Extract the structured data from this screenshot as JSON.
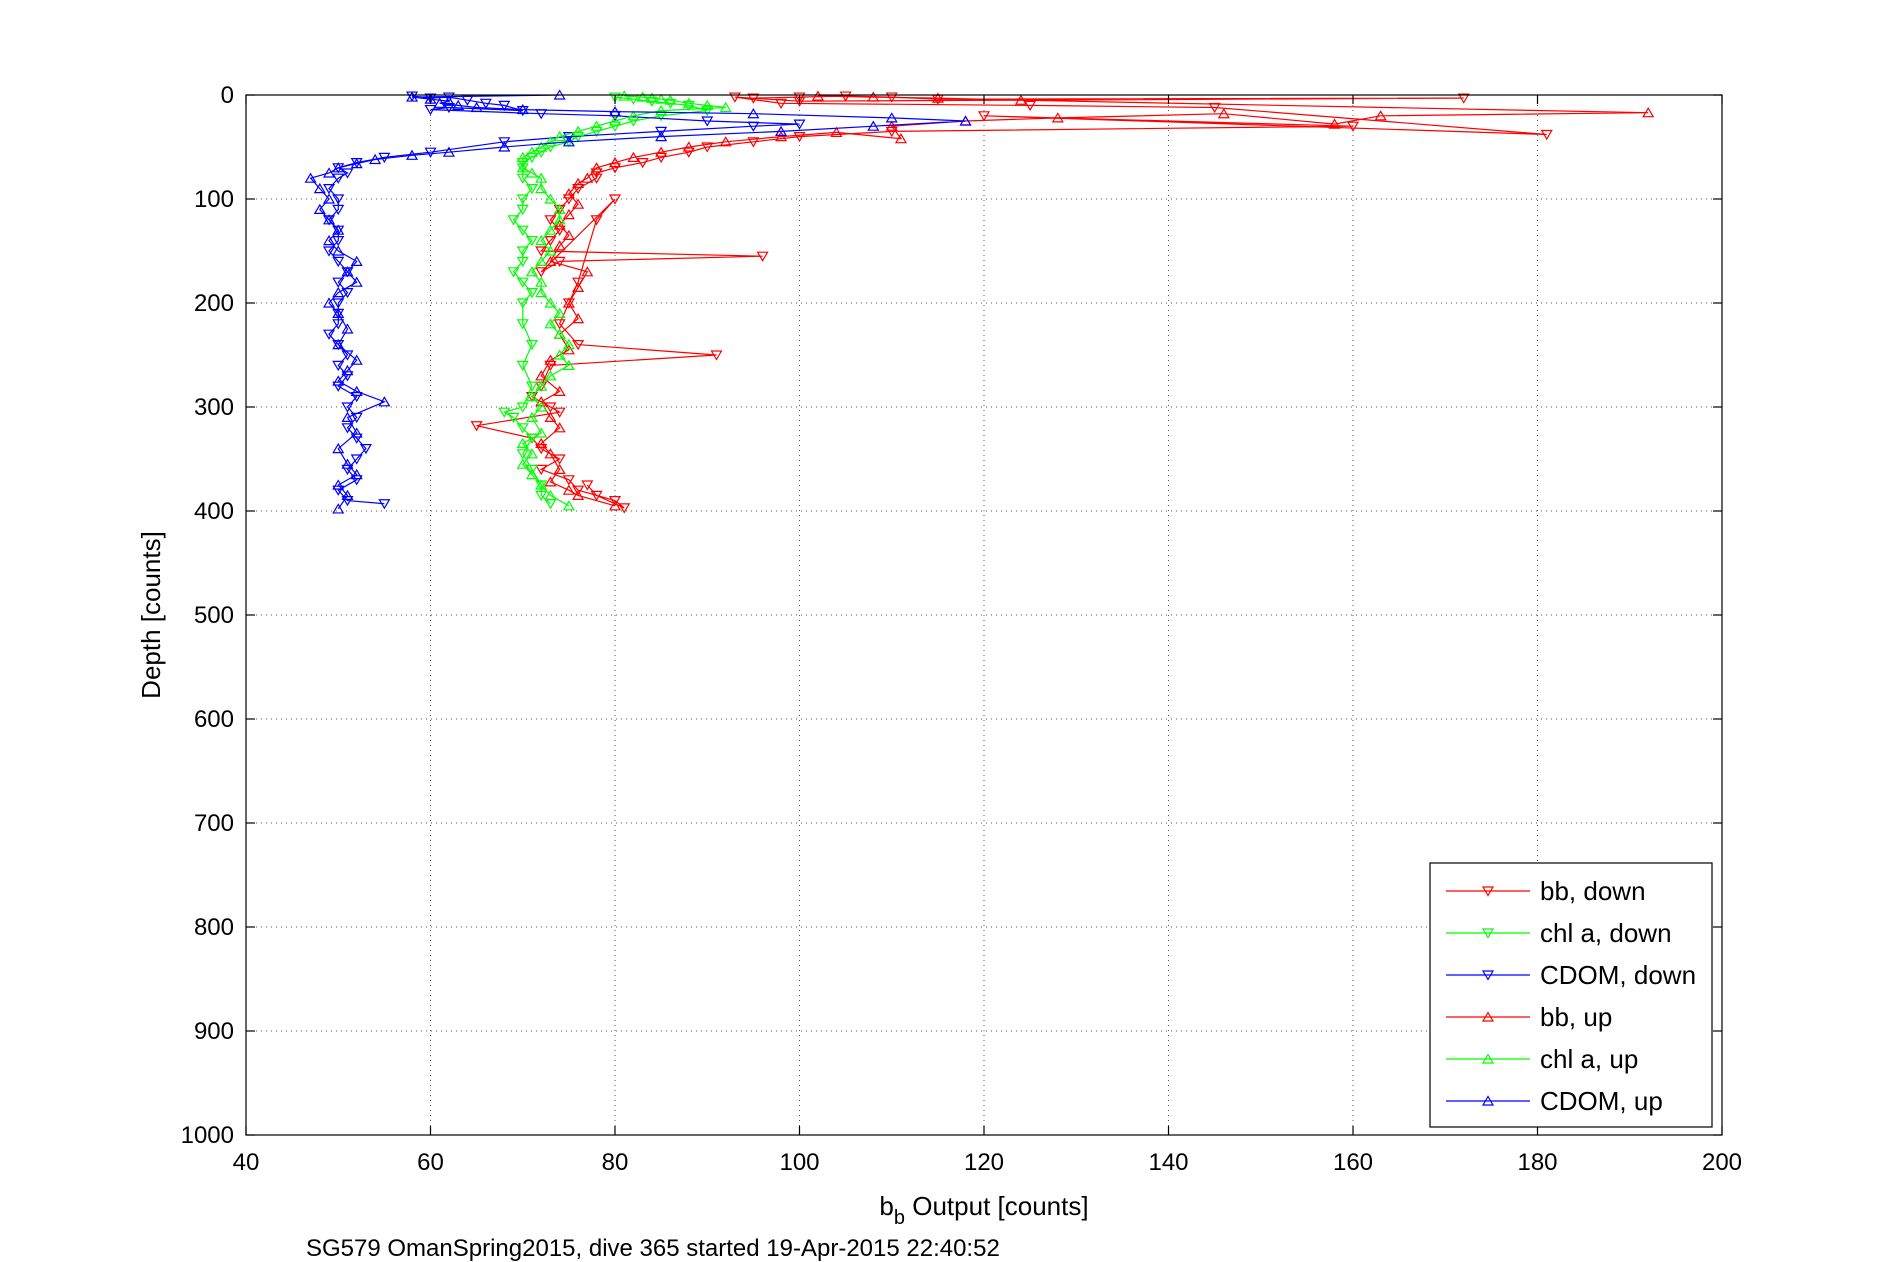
{
  "chart_data": {
    "type": "scatter",
    "xlabel_main": "b",
    "xlabel_sub": "b",
    "xlabel_rest": " Output [counts]",
    "ylabel": "Depth [counts]",
    "caption": "SG579 OmanSpring2015, dive 365 started 19-Apr-2015 22:40:52",
    "xlim": [
      40,
      200
    ],
    "ylim": [
      0,
      1000
    ],
    "y_reversed": true,
    "grid": true,
    "legend_placement": "bottom-right",
    "x_ticks": [
      40,
      60,
      80,
      100,
      120,
      140,
      160,
      180,
      200
    ],
    "y_ticks": [
      0,
      100,
      200,
      300,
      400,
      500,
      600,
      700,
      800,
      900,
      1000
    ],
    "x_tick_labels": [
      "40",
      "60",
      "80",
      "100",
      "120",
      "140",
      "160",
      "180",
      "200"
    ],
    "y_tick_labels": [
      "0",
      "100",
      "200",
      "300",
      "400",
      "500",
      "600",
      "700",
      "800",
      "900",
      "1000"
    ],
    "series": [
      {
        "name": "bb, down",
        "color": "#ff0000",
        "marker": "triangle-down",
        "points": [
          [
            95,
            3
          ],
          [
            100,
            2
          ],
          [
            105,
            1
          ],
          [
            110,
            2
          ],
          [
            115,
            4
          ],
          [
            172,
            3
          ],
          [
            100,
            6
          ],
          [
            93,
            2
          ],
          [
            98,
            8
          ],
          [
            125,
            10
          ],
          [
            145,
            12
          ],
          [
            181,
            38
          ],
          [
            120,
            20
          ],
          [
            160,
            30
          ],
          [
            110,
            35
          ],
          [
            100,
            40
          ],
          [
            95,
            45
          ],
          [
            90,
            50
          ],
          [
            88,
            55
          ],
          [
            85,
            60
          ],
          [
            83,
            65
          ],
          [
            80,
            70
          ],
          [
            78,
            75
          ],
          [
            78,
            80
          ],
          [
            76,
            90
          ],
          [
            75,
            100
          ],
          [
            74,
            110
          ],
          [
            73,
            120
          ],
          [
            74,
            130
          ],
          [
            73,
            140
          ],
          [
            72,
            150
          ],
          [
            96,
            155
          ],
          [
            74,
            160
          ],
          [
            72,
            170
          ],
          [
            80,
            100
          ],
          [
            78,
            120
          ],
          [
            76,
            180
          ],
          [
            75,
            200
          ],
          [
            74,
            220
          ],
          [
            76,
            240
          ],
          [
            91,
            250
          ],
          [
            73,
            260
          ],
          [
            72,
            280
          ],
          [
            71,
            290
          ],
          [
            73,
            300
          ],
          [
            74,
            305
          ],
          [
            65,
            318
          ],
          [
            71,
            330
          ],
          [
            72,
            340
          ],
          [
            74,
            350
          ],
          [
            72,
            360
          ],
          [
            75,
            370
          ],
          [
            76,
            380
          ],
          [
            80,
            390
          ],
          [
            81,
            397
          ],
          [
            78,
            385
          ],
          [
            77,
            375
          ]
        ]
      },
      {
        "name": "chl a, down",
        "color": "#00ff00",
        "marker": "triangle-down",
        "points": [
          [
            80,
            2
          ],
          [
            82,
            4
          ],
          [
            84,
            6
          ],
          [
            86,
            8
          ],
          [
            88,
            10
          ],
          [
            90,
            15
          ],
          [
            85,
            20
          ],
          [
            82,
            25
          ],
          [
            80,
            30
          ],
          [
            78,
            35
          ],
          [
            76,
            40
          ],
          [
            75,
            45
          ],
          [
            73,
            50
          ],
          [
            72,
            55
          ],
          [
            71,
            60
          ],
          [
            70,
            65
          ],
          [
            70,
            70
          ],
          [
            70,
            80
          ],
          [
            71,
            90
          ],
          [
            70,
            100
          ],
          [
            70,
            110
          ],
          [
            69,
            120
          ],
          [
            70,
            130
          ],
          [
            71,
            140
          ],
          [
            70,
            150
          ],
          [
            70,
            160
          ],
          [
            69,
            170
          ],
          [
            70,
            180
          ],
          [
            71,
            190
          ],
          [
            70,
            200
          ],
          [
            70,
            220
          ],
          [
            71,
            240
          ],
          [
            70,
            260
          ],
          [
            71,
            280
          ],
          [
            70,
            300
          ],
          [
            68,
            305
          ],
          [
            69,
            310
          ],
          [
            70,
            320
          ],
          [
            71,
            330
          ],
          [
            70,
            345
          ],
          [
            71,
            360
          ],
          [
            72,
            375
          ],
          [
            72,
            385
          ],
          [
            73,
            393
          ]
        ]
      },
      {
        "name": "CDOM, down",
        "color": "#0000ff",
        "marker": "triangle-down",
        "points": [
          [
            58,
            1
          ],
          [
            60,
            3
          ],
          [
            62,
            2
          ],
          [
            64,
            5
          ],
          [
            66,
            8
          ],
          [
            68,
            10
          ],
          [
            70,
            15
          ],
          [
            62,
            12
          ],
          [
            60,
            14
          ],
          [
            72,
            18
          ],
          [
            80,
            20
          ],
          [
            90,
            25
          ],
          [
            100,
            28
          ],
          [
            95,
            30
          ],
          [
            85,
            35
          ],
          [
            75,
            40
          ],
          [
            68,
            45
          ],
          [
            60,
            55
          ],
          [
            55,
            60
          ],
          [
            52,
            65
          ],
          [
            50,
            70
          ],
          [
            51,
            75
          ],
          [
            50,
            80
          ],
          [
            49,
            90
          ],
          [
            50,
            100
          ],
          [
            50,
            110
          ],
          [
            49,
            120
          ],
          [
            50,
            130
          ],
          [
            50,
            140
          ],
          [
            49,
            150
          ],
          [
            50,
            160
          ],
          [
            51,
            170
          ],
          [
            50,
            180
          ],
          [
            51,
            190
          ],
          [
            50,
            200
          ],
          [
            50,
            210
          ],
          [
            50,
            220
          ],
          [
            49,
            230
          ],
          [
            50,
            240
          ],
          [
            51,
            250
          ],
          [
            50,
            260
          ],
          [
            51,
            270
          ],
          [
            50,
            280
          ],
          [
            52,
            290
          ],
          [
            51,
            300
          ],
          [
            52,
            310
          ],
          [
            51,
            320
          ],
          [
            52,
            330
          ],
          [
            53,
            340
          ],
          [
            52,
            350
          ],
          [
            51,
            360
          ],
          [
            52,
            370
          ],
          [
            50,
            380
          ],
          [
            51,
            390
          ],
          [
            55,
            393
          ]
        ]
      },
      {
        "name": "bb, up",
        "color": "#ff0000",
        "marker": "triangle-up",
        "points": [
          [
            102,
            1
          ],
          [
            108,
            2
          ],
          [
            115,
            3
          ],
          [
            124,
            5
          ],
          [
            192,
            17
          ],
          [
            163,
            20
          ],
          [
            158,
            28
          ],
          [
            146,
            18
          ],
          [
            128,
            22
          ],
          [
            118,
            25
          ],
          [
            110,
            30
          ],
          [
            111,
            42
          ],
          [
            104,
            36
          ],
          [
            98,
            40
          ],
          [
            92,
            45
          ],
          [
            88,
            50
          ],
          [
            85,
            55
          ],
          [
            82,
            60
          ],
          [
            80,
            65
          ],
          [
            78,
            70
          ],
          [
            77,
            80
          ],
          [
            76,
            85
          ],
          [
            75,
            95
          ],
          [
            76,
            105
          ],
          [
            75,
            115
          ],
          [
            74,
            125
          ],
          [
            75,
            135
          ],
          [
            74,
            145
          ],
          [
            73,
            160
          ],
          [
            77,
            170
          ],
          [
            76,
            185
          ],
          [
            75,
            200
          ],
          [
            76,
            215
          ],
          [
            74,
            230
          ],
          [
            75,
            245
          ],
          [
            73,
            255
          ],
          [
            72,
            270
          ],
          [
            74,
            285
          ],
          [
            72,
            295
          ],
          [
            73,
            310
          ],
          [
            74,
            320
          ],
          [
            72,
            335
          ],
          [
            73,
            345
          ],
          [
            74,
            360
          ],
          [
            73,
            372
          ],
          [
            75,
            380
          ],
          [
            76,
            385
          ],
          [
            80,
            395
          ]
        ]
      },
      {
        "name": "chl a, up",
        "color": "#00ff00",
        "marker": "triangle-up",
        "points": [
          [
            81,
            1
          ],
          [
            83,
            2
          ],
          [
            84,
            3
          ],
          [
            85,
            4
          ],
          [
            86,
            5
          ],
          [
            88,
            8
          ],
          [
            90,
            10
          ],
          [
            92,
            12
          ],
          [
            85,
            15
          ],
          [
            82,
            20
          ],
          [
            80,
            25
          ],
          [
            78,
            30
          ],
          [
            76,
            35
          ],
          [
            74,
            40
          ],
          [
            73,
            45
          ],
          [
            72,
            50
          ],
          [
            71,
            55
          ],
          [
            70,
            60
          ],
          [
            70,
            70
          ],
          [
            71,
            75
          ],
          [
            72,
            80
          ],
          [
            72,
            90
          ],
          [
            73,
            100
          ],
          [
            74,
            110
          ],
          [
            74,
            120
          ],
          [
            73,
            130
          ],
          [
            72,
            140
          ],
          [
            73,
            150
          ],
          [
            72,
            160
          ],
          [
            71,
            170
          ],
          [
            72,
            180
          ],
          [
            72,
            190
          ],
          [
            73,
            200
          ],
          [
            74,
            210
          ],
          [
            73,
            220
          ],
          [
            74,
            230
          ],
          [
            75,
            240
          ],
          [
            74,
            250
          ],
          [
            75,
            260
          ],
          [
            73,
            270
          ],
          [
            72,
            280
          ],
          [
            71,
            290
          ],
          [
            72,
            300
          ],
          [
            71,
            310
          ],
          [
            72,
            325
          ],
          [
            70,
            335
          ],
          [
            71,
            345
          ],
          [
            70,
            355
          ],
          [
            71,
            365
          ],
          [
            72,
            375
          ],
          [
            73,
            385
          ],
          [
            75,
            395
          ]
        ]
      },
      {
        "name": "CDOM, up",
        "color": "#0000ff",
        "marker": "triangle-up",
        "points": [
          [
            74,
            0
          ],
          [
            58,
            2
          ],
          [
            60,
            4
          ],
          [
            62,
            6
          ],
          [
            61,
            8
          ],
          [
            63,
            10
          ],
          [
            65,
            12
          ],
          [
            70,
            14
          ],
          [
            80,
            16
          ],
          [
            95,
            18
          ],
          [
            110,
            22
          ],
          [
            118,
            25
          ],
          [
            108,
            30
          ],
          [
            98,
            35
          ],
          [
            85,
            40
          ],
          [
            75,
            45
          ],
          [
            68,
            50
          ],
          [
            62,
            55
          ],
          [
            58,
            58
          ],
          [
            54,
            62
          ],
          [
            52,
            66
          ],
          [
            50,
            70
          ],
          [
            49,
            75
          ],
          [
            47,
            80
          ],
          [
            48,
            90
          ],
          [
            49,
            100
          ],
          [
            48,
            110
          ],
          [
            49,
            120
          ],
          [
            50,
            130
          ],
          [
            49,
            140
          ],
          [
            50,
            150
          ],
          [
            52,
            160
          ],
          [
            51,
            170
          ],
          [
            52,
            180
          ],
          [
            50,
            190
          ],
          [
            49,
            200
          ],
          [
            50,
            210
          ],
          [
            51,
            225
          ],
          [
            50,
            240
          ],
          [
            52,
            255
          ],
          [
            51,
            265
          ],
          [
            50,
            275
          ],
          [
            52,
            285
          ],
          [
            55,
            295
          ],
          [
            51,
            310
          ],
          [
            52,
            325
          ],
          [
            50,
            340
          ],
          [
            51,
            355
          ],
          [
            52,
            365
          ],
          [
            50,
            375
          ],
          [
            51,
            385
          ],
          [
            50,
            398
          ]
        ]
      }
    ]
  }
}
